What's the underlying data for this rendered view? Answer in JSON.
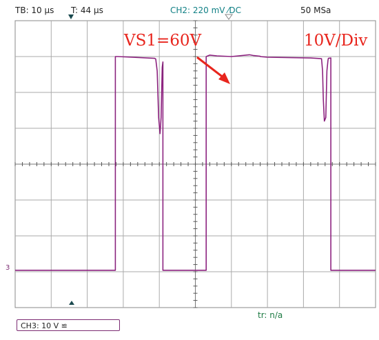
{
  "header": {
    "timebase": "TB: 10 µs",
    "trigger_time": "T: 44 µs",
    "channel2": "CH2: 220 mV ⁄DC",
    "sample_rate": "50 MSa"
  },
  "annotations": {
    "vs1": "VS1=60V",
    "scale": "10V/Div"
  },
  "footer": {
    "tr": "tr: n/a",
    "ch3": "CH3: 10 V ≌"
  },
  "colors": {
    "trace": "#a0208e",
    "trace_dark": "#5a2a5a",
    "annotation": "#e8251d",
    "grid": "#888888"
  },
  "chart_data": {
    "type": "line",
    "title": "",
    "xlabel": "",
    "ylabel": "",
    "x_unit": "µs",
    "y_unit": "V",
    "grid": true,
    "xlim": [
      0,
      100
    ],
    "ylim": [
      -40,
      40
    ],
    "x_divisions": 10,
    "y_divisions": 8,
    "series": [
      {
        "x": [
          0,
          27.8,
          27.8,
          28.5,
          38.7,
          39.0,
          39.4,
          39.8,
          40.2,
          40.5,
          40.8,
          41.0,
          41.0,
          47.0,
          53.0,
          53.0,
          54.0,
          56.0,
          60.0,
          65.0,
          66.0,
          68.0,
          68.0,
          70.0,
          82.0,
          85.0,
          85.3,
          85.5,
          85.8,
          86.2,
          86.5,
          86.8,
          86.9,
          87.6,
          87.6,
          100
        ],
        "y": [
          -29.6,
          -29.6,
          30.0,
          30.0,
          29.5,
          29.3,
          26.0,
          13.0,
          8.5,
          13.0,
          27.0,
          28.5,
          -29.6,
          -29.6,
          -29.6,
          30.0,
          30.4,
          30.2,
          30.0,
          30.5,
          30.3,
          30.1,
          30.0,
          29.8,
          29.6,
          29.4,
          26.0,
          18.0,
          12.0,
          13.0,
          26.0,
          29.0,
          29.5,
          29.6,
          -29.6,
          -29.6
        ]
      }
    ]
  }
}
